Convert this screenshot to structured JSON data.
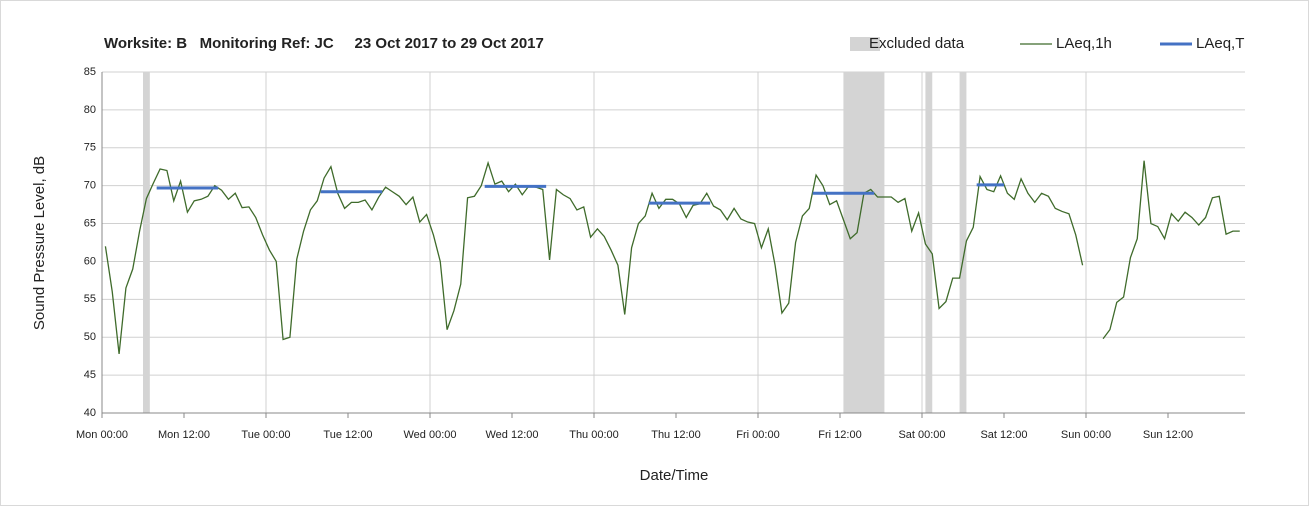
{
  "chart_data": {
    "type": "line",
    "title": "Worksite: B   Monitoring Ref: JC     23 Oct 2017 to 29 Oct 2017",
    "x_label": "Date/Time",
    "y_label": "Sound Pressure Level, dB",
    "xlim": [
      0,
      168
    ],
    "ylim": [
      40,
      85
    ],
    "yticks": [
      40,
      45,
      50,
      55,
      60,
      65,
      70,
      75,
      80,
      85
    ],
    "xticks": [
      {
        "value": 0,
        "label": "Mon 00:00"
      },
      {
        "value": 12,
        "label": "Mon 12:00"
      },
      {
        "value": 24,
        "label": "Tue 00:00"
      },
      {
        "value": 36,
        "label": "Tue 12:00"
      },
      {
        "value": 48,
        "label": "Wed 00:00"
      },
      {
        "value": 60,
        "label": "Wed 12:00"
      },
      {
        "value": 72,
        "label": "Thu 00:00"
      },
      {
        "value": 84,
        "label": "Thu 12:00"
      },
      {
        "value": 96,
        "label": "Fri 00:00"
      },
      {
        "value": 108,
        "label": "Fri 12:00"
      },
      {
        "value": 120,
        "label": "Sat 00:00"
      },
      {
        "value": 132,
        "label": "Sat 12:00"
      },
      {
        "value": 144,
        "label": "Sun 00:00"
      },
      {
        "value": 156,
        "label": "Sun 12:00"
      }
    ],
    "grid": true,
    "x_grid_step": 24,
    "legend": "top-right",
    "excluded": {
      "name": "Excluded data",
      "color": "#d4d4d4",
      "ranges": [
        [
          6,
          7
        ],
        [
          108.5,
          114.5
        ],
        [
          120.5,
          121.5
        ],
        [
          125.5,
          126.5
        ]
      ]
    },
    "series": [
      {
        "name": "LAeq,1h",
        "color": "#3f6b2b",
        "x": [
          0.5,
          1.5,
          2.5,
          3.5,
          4.5,
          5.5,
          6.5,
          7.5,
          8.5,
          9.5,
          10.5,
          11.5,
          12.5,
          13.5,
          14.5,
          15.5,
          16.5,
          17.5,
          18.5,
          19.5,
          20.5,
          21.5,
          22.5,
          23.5,
          24.5,
          25.5,
          26.5,
          27.5,
          28.5,
          29.5,
          30.5,
          31.5,
          32.5,
          33.5,
          34.5,
          35.5,
          36.5,
          37.5,
          38.5,
          39.5,
          40.5,
          41.5,
          42.5,
          43.5,
          44.5,
          45.5,
          46.5,
          47.5,
          48.5,
          49.5,
          50.5,
          51.5,
          52.5,
          53.5,
          54.5,
          55.5,
          56.5,
          57.5,
          58.5,
          59.5,
          60.5,
          61.5,
          62.5,
          63.5,
          64.5,
          65.5,
          66.5,
          67.5,
          68.5,
          69.5,
          70.5,
          71.5,
          72.5,
          73.5,
          74.5,
          75.5,
          76.5,
          77.5,
          78.5,
          79.5,
          80.5,
          81.5,
          82.5,
          83.5,
          84.5,
          85.5,
          86.5,
          87.5,
          88.5,
          89.5,
          90.5,
          91.5,
          92.5,
          93.5,
          94.5,
          95.5,
          96.5,
          97.5,
          98.5,
          99.5,
          100.5,
          101.5,
          102.5,
          103.5,
          104.5,
          105.5,
          106.5,
          107.5,
          108.5,
          109.5,
          110.5,
          111.5,
          112.5,
          113.5,
          114.5,
          115.5,
          116.5,
          117.5,
          118.5,
          119.5,
          120.5,
          121.5,
          122.5,
          123.5,
          124.5,
          125.5,
          126.5,
          127.5,
          128.5,
          129.5,
          130.5,
          131.5,
          132.5,
          133.5,
          134.5,
          135.5,
          136.5,
          137.5,
          138.5,
          139.5,
          140.5,
          141.5,
          142.5,
          143.5,
          144.5,
          145.5,
          146.5,
          147.5,
          148.5,
          149.5,
          150.5,
          151.5,
          152.5,
          153.5,
          154.5,
          155.5,
          156.5,
          157.5,
          158.5,
          159.5,
          160.5,
          161.5,
          162.5,
          163.5,
          164.5,
          165.5,
          166.5
        ],
        "values": [
          62,
          56,
          47.8,
          56.5,
          59,
          64,
          68.3,
          70.3,
          72.2,
          72,
          68,
          70.6,
          66.5,
          68,
          68.2,
          68.6,
          70,
          69.4,
          68.2,
          69,
          67.1,
          67.2,
          65.8,
          63.5,
          61.5,
          60,
          49.7,
          50,
          60.3,
          64,
          66.8,
          68,
          71,
          72.5,
          69,
          67,
          67.8,
          67.8,
          68.1,
          66.8,
          68.5,
          69.8,
          69.2,
          68.6,
          67.5,
          68.5,
          65.2,
          66.2,
          63.5,
          60,
          51,
          53.5,
          57,
          68.4,
          68.6,
          70,
          73,
          70.2,
          70.6,
          69.2,
          70.2,
          68.8,
          70,
          69.8,
          69.5,
          60.2,
          69.5,
          68.8,
          68.3,
          66.8,
          67.2,
          63.2,
          64.3,
          63.3,
          61.5,
          59.5,
          53,
          61.8,
          65,
          66,
          69,
          67,
          68.2,
          68.2,
          67.6,
          65.8,
          67.4,
          67.6,
          69,
          67.3,
          66.8,
          65.5,
          67,
          65.6,
          65.2,
          65,
          61.8,
          64.3,
          59.5,
          53.2,
          54.5,
          62.5,
          66,
          67,
          71.4,
          70,
          67.5,
          68,
          65.5,
          63,
          63.8,
          69,
          69.5,
          68.5,
          68.5,
          68.5,
          67.8,
          68.3,
          64,
          66.4,
          62.3,
          61,
          53.8,
          54.7,
          57.8,
          57.8,
          62.7,
          64.5,
          71.2,
          69.5,
          69.2,
          71.3,
          69,
          68.2,
          70.9,
          69,
          67.8,
          69,
          68.6,
          67,
          66.6,
          66.3,
          63.5,
          59.5,
          null,
          null,
          49.8,
          51,
          54.6,
          55.3,
          60.5,
          63,
          73.3,
          65,
          64.6,
          63,
          66.3,
          65.3,
          66.5,
          65.8,
          64.8,
          65.8,
          68.4,
          68.6,
          63.6,
          64,
          64
        ]
      },
      {
        "name": "LAeq,T",
        "color": "#4472c4",
        "style": "segments",
        "start": [
          8,
          32,
          56,
          80,
          104,
          128
        ],
        "end": [
          17,
          41,
          65,
          89,
          113,
          132
        ],
        "values": [
          69.7,
          69.2,
          69.9,
          67.7,
          69.0,
          70.1
        ]
      }
    ]
  }
}
